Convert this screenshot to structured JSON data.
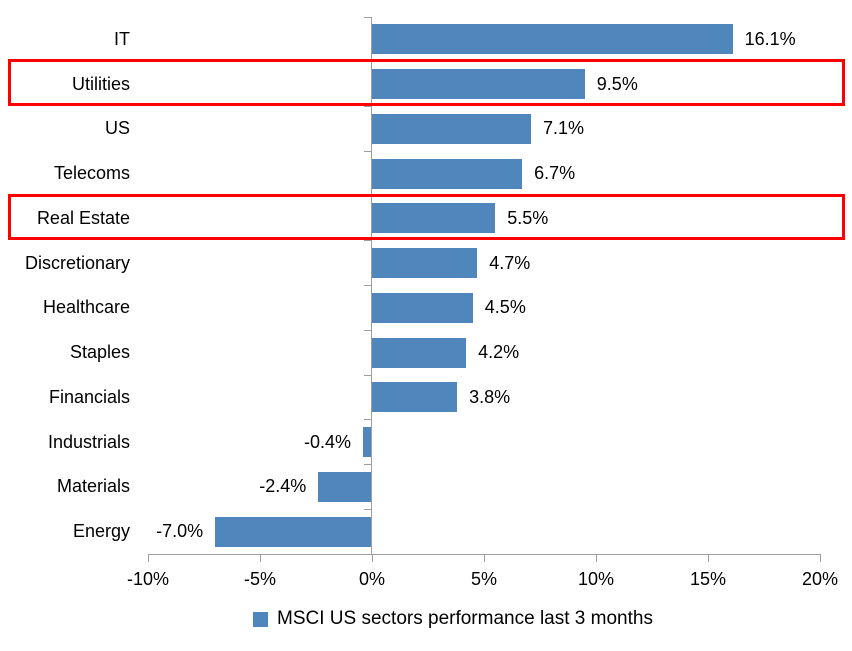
{
  "chart_data": {
    "type": "bar",
    "orientation": "horizontal",
    "series_name": "MSCI US sectors performance last 3 months",
    "categories": [
      "IT",
      "Utilities",
      "US",
      "Telecoms",
      "Real Estate",
      "Discretionary",
      "Healthcare",
      "Staples",
      "Financials",
      "Industrials",
      "Materials",
      "Energy"
    ],
    "values": [
      16.1,
      9.5,
      7.1,
      6.7,
      5.5,
      4.7,
      4.5,
      4.2,
      3.8,
      -0.4,
      -2.4,
      -7.0
    ],
    "value_labels": [
      "16.1%",
      "9.5%",
      "7.1%",
      "6.7%",
      "5.5%",
      "4.7%",
      "4.5%",
      "4.2%",
      "3.8%",
      "-0.4%",
      "-2.4%",
      "-7.0%"
    ],
    "x_ticks": [
      {
        "value": -10,
        "label": "-10%"
      },
      {
        "value": -5,
        "label": "-5%"
      },
      {
        "value": 0,
        "label": "0%"
      },
      {
        "value": 5,
        "label": "5%"
      },
      {
        "value": 10,
        "label": "10%"
      },
      {
        "value": 15,
        "label": "15%"
      },
      {
        "value": 20,
        "label": "20%"
      }
    ],
    "xlim": [
      -10,
      20
    ],
    "grid": false,
    "legend_position": "bottom-center",
    "highlighted_categories": [
      "Utilities",
      "Real Estate"
    ],
    "colors": {
      "bar": "#4F87BD",
      "highlight_box": "#FF0000",
      "axis": "#9E9E9E",
      "text": "#000000",
      "background": "#FFFFFF"
    }
  }
}
